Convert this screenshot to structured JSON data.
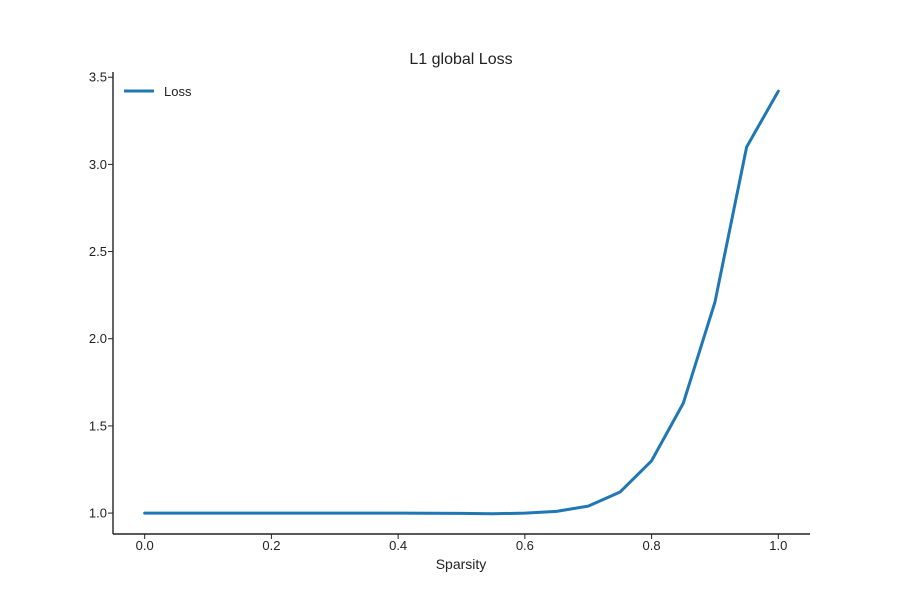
{
  "chart_data": {
    "type": "line",
    "title": "L1 global Loss",
    "xlabel": "Sparsity",
    "ylabel": "",
    "xlim": [
      -0.05,
      1.05
    ],
    "ylim": [
      0.88,
      3.53
    ],
    "xticks": [
      0.0,
      0.2,
      0.4,
      0.6,
      0.8,
      1.0
    ],
    "xtick_labels": [
      "0.0",
      "0.2",
      "0.4",
      "0.6",
      "0.8",
      "1.0"
    ],
    "yticks": [
      1.0,
      1.5,
      2.0,
      2.5,
      3.0,
      3.5
    ],
    "ytick_labels": [
      "1.0",
      "1.5",
      "2.0",
      "2.5",
      "3.0",
      "3.5"
    ],
    "grid": false,
    "legend": {
      "placement": "top-left"
    },
    "series": [
      {
        "name": "Loss",
        "color": "#1f77b4",
        "x": [
          0.0,
          0.05,
          0.1,
          0.15,
          0.2,
          0.25,
          0.3,
          0.35,
          0.4,
          0.45,
          0.5,
          0.55,
          0.6,
          0.65,
          0.7,
          0.75,
          0.8,
          0.85,
          0.9,
          0.95,
          1.0
        ],
        "y": [
          1.0,
          1.0,
          1.0,
          1.0,
          1.0,
          1.0,
          1.0,
          1.0,
          1.0,
          0.999,
          0.998,
          0.996,
          1.0,
          1.01,
          1.04,
          1.12,
          1.3,
          1.63,
          2.21,
          3.1,
          3.42
        ]
      }
    ]
  }
}
